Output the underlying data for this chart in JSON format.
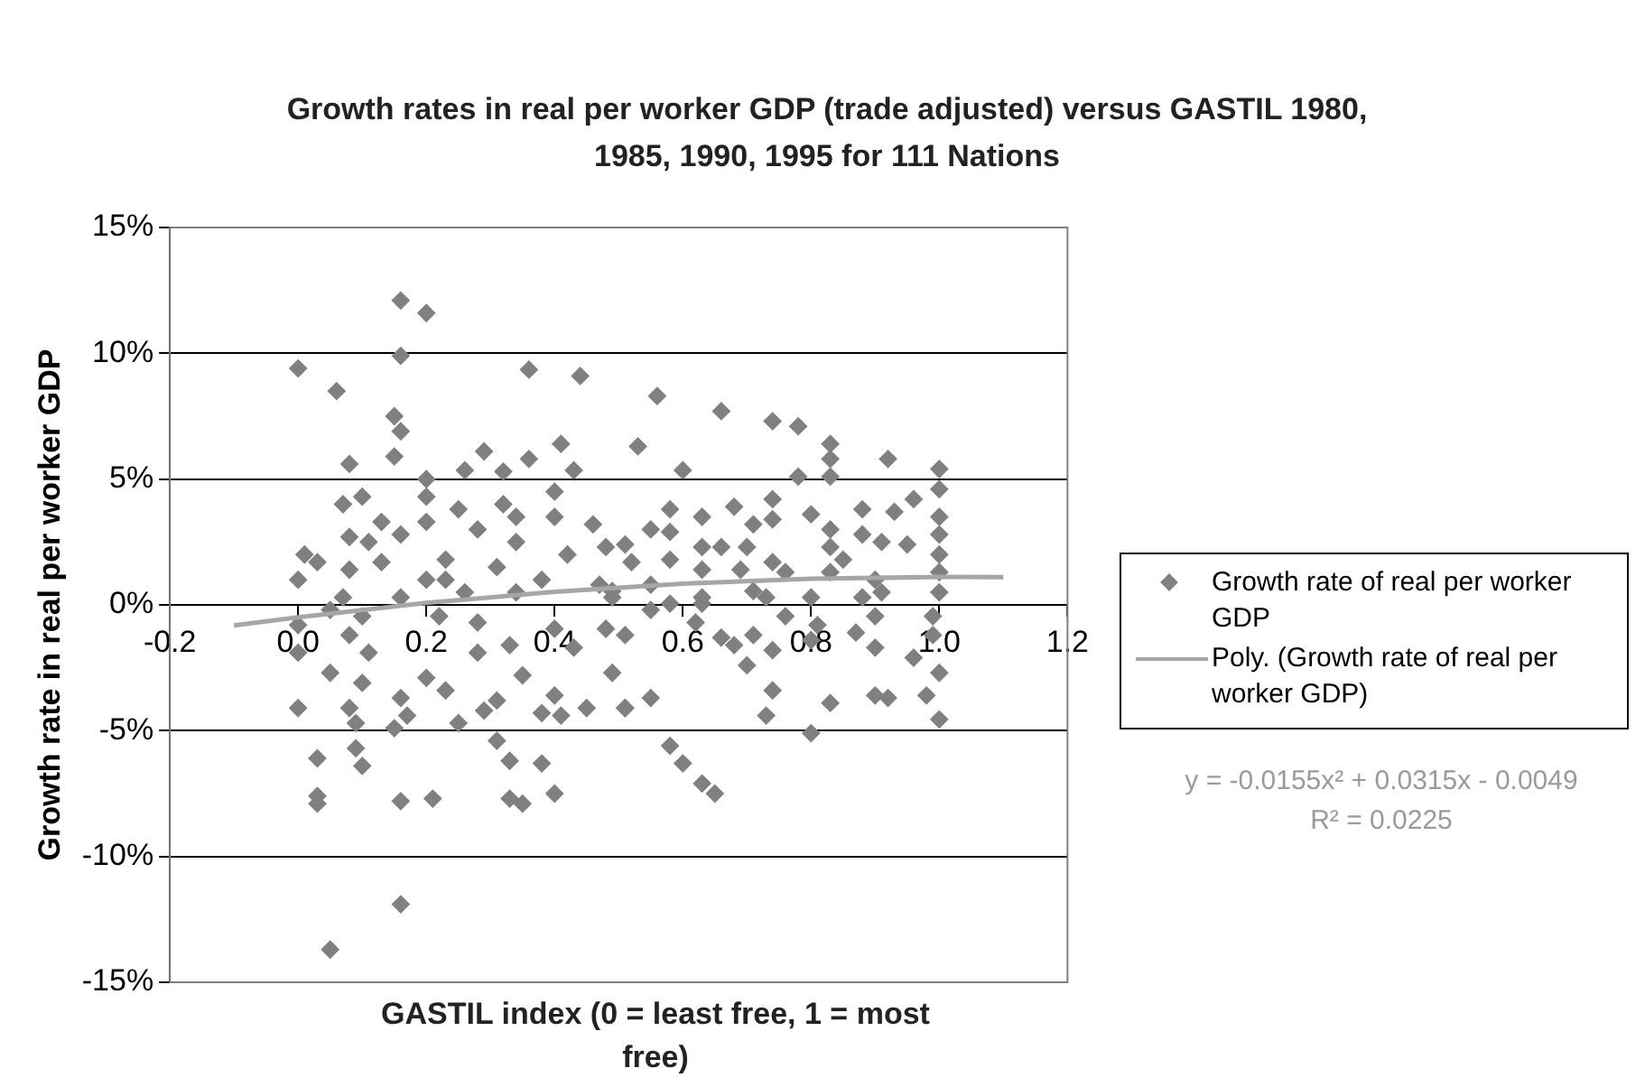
{
  "chart_data": {
    "type": "scatter",
    "title": "Growth rates in real per worker GDP (trade adjusted) versus GASTIL 1980, 1985, 1990, 1995 for 111 Nations",
    "xlabel": "GASTIL index (0 = least free, 1 = most free)",
    "ylabel": "Growth rate in real per worker GDP",
    "xlim": [
      -0.2,
      1.2
    ],
    "xticks": [
      -0.2,
      {
        "value": 0,
        "label": "0.0"
      },
      0.2,
      0.4,
      0.6,
      0.8,
      {
        "value": 1,
        "label": "1.0"
      },
      1.2
    ],
    "ylim": [
      -15,
      15
    ],
    "yticks": [
      {
        "value": -15,
        "label": "-15%"
      },
      {
        "value": -10,
        "label": "-10%"
      },
      {
        "value": -5,
        "label": "-5%"
      },
      {
        "value": 0,
        "label": "0%"
      },
      {
        "value": 5,
        "label": "5%"
      },
      {
        "value": 10,
        "label": "10%"
      },
      {
        "value": 15,
        "label": "15%"
      }
    ],
    "grid": "y",
    "legend": "right",
    "line_style": "solid",
    "annotations": [
      "y = -0.0155x² + 0.0315x - 0.0049",
      "R² = 0.0225"
    ],
    "series": [
      {
        "name": "Growth rate of real per worker GDP",
        "marker": "diamond",
        "color": "#808080",
        "x": [
          0.0,
          0.06,
          0.16,
          0.2,
          0.16,
          0.36,
          0.44,
          0.15,
          0.16,
          0.08,
          0.15,
          0.41,
          0.43,
          0.29,
          0.26,
          0.36,
          0.32,
          0.2,
          0.07,
          0.1,
          0.08,
          0.11,
          0.13,
          0.16,
          0.2,
          0.2,
          0.25,
          0.28,
          0.32,
          0.34,
          0.34,
          0.4,
          0.4,
          0.46,
          0.48,
          0.0,
          0.01,
          0.03,
          0.08,
          0.13,
          0.2,
          0.23,
          0.31,
          0.38,
          0.42,
          0.26,
          0.34,
          0.47,
          0.07,
          0.16,
          0.49,
          0.23,
          0.0,
          0.0,
          0.05,
          0.1,
          0.0,
          0.08,
          0.09,
          0.09,
          0.1,
          0.03,
          0.03,
          0.03,
          0.16,
          0.21,
          0.16,
          0.05,
          0.16,
          0.15,
          0.17,
          0.08,
          0.11,
          0.1,
          0.2,
          0.23,
          0.25,
          0.28,
          0.29,
          0.31,
          0.31,
          0.33,
          0.33,
          0.35,
          0.38,
          0.4,
          0.35,
          0.38,
          0.41,
          0.4,
          0.45,
          0.33,
          0.4,
          0.43,
          0.48,
          0.49,
          0.51,
          0.05,
          0.22,
          0.28,
          0.56,
          0.66,
          0.74,
          0.78,
          0.53,
          0.6,
          0.83,
          0.83,
          0.83,
          0.78,
          0.92,
          1.0,
          1.0,
          0.96,
          0.88,
          0.93,
          0.74,
          0.74,
          0.68,
          0.63,
          0.58,
          0.55,
          0.51,
          0.58,
          0.63,
          0.66,
          0.71,
          0.7,
          0.8,
          0.83,
          0.83,
          0.85,
          0.88,
          0.91,
          0.95,
          1.0,
          1.0,
          1.0,
          1.0,
          1.0,
          0.52,
          0.58,
          0.63,
          0.69,
          0.74,
          0.76,
          0.83,
          0.9,
          0.91,
          0.88,
          0.49,
          0.55,
          0.63,
          0.71,
          0.8,
          0.73,
          0.51,
          0.55,
          0.62,
          0.51,
          0.55,
          0.58,
          0.6,
          0.63,
          0.65,
          0.66,
          0.68,
          0.7,
          0.71,
          0.74,
          0.74,
          0.73,
          0.76,
          0.8,
          0.81,
          0.8,
          0.83,
          0.87,
          0.9,
          0.9,
          0.92,
          0.9,
          0.96,
          0.98,
          1.0,
          1.0,
          0.99,
          0.99,
          0.58,
          0.63
        ],
        "values": [
          9.4,
          8.5,
          12.1,
          11.6,
          9.9,
          9.35,
          9.1,
          7.5,
          6.9,
          5.6,
          5.9,
          6.4,
          5.35,
          6.1,
          5.35,
          5.8,
          5.3,
          5.0,
          4.0,
          4.3,
          2.7,
          2.5,
          3.3,
          2.8,
          4.3,
          3.3,
          3.8,
          3.0,
          4.0,
          3.5,
          2.5,
          4.5,
          3.5,
          3.2,
          2.3,
          1.0,
          2.0,
          1.7,
          1.4,
          1.7,
          1.0,
          1.8,
          1.5,
          1.0,
          2.0,
          0.5,
          0.5,
          0.8,
          0.3,
          0.3,
          0.3,
          1.0,
          -0.8,
          -1.9,
          -2.7,
          -3.1,
          -4.1,
          -4.1,
          -4.7,
          -5.7,
          -6.4,
          -6.1,
          -7.6,
          -7.9,
          -7.8,
          -7.7,
          -11.9,
          -13.7,
          -3.7,
          -4.9,
          -4.4,
          -1.2,
          -1.9,
          -0.45,
          -2.9,
          -3.4,
          -4.7,
          -1.9,
          -4.2,
          -3.8,
          -5.4,
          -6.2,
          -7.7,
          -7.9,
          -6.3,
          -7.5,
          -2.8,
          -4.3,
          -4.4,
          -3.6,
          -4.1,
          -1.6,
          -0.95,
          -1.7,
          -0.95,
          -2.7,
          -4.1,
          -0.2,
          -0.45,
          -0.7,
          8.3,
          7.7,
          7.3,
          7.1,
          6.3,
          5.35,
          6.4,
          5.8,
          5.1,
          5.1,
          5.8,
          5.4,
          4.6,
          4.2,
          3.8,
          3.7,
          4.2,
          3.4,
          3.9,
          3.5,
          3.8,
          3.0,
          2.4,
          2.9,
          2.3,
          2.3,
          3.2,
          2.3,
          3.6,
          3.0,
          2.3,
          1.8,
          2.8,
          2.5,
          2.4,
          3.5,
          2.8,
          2.0,
          1.3,
          0.5,
          1.7,
          1.8,
          1.4,
          1.4,
          1.7,
          1.3,
          1.3,
          1.0,
          0.5,
          0.3,
          0.55,
          0.8,
          0.3,
          0.55,
          0.3,
          0.3,
          -1.2,
          -0.2,
          -0.7,
          -4.1,
          -3.7,
          -5.6,
          -6.3,
          -7.1,
          -7.5,
          -1.3,
          -1.6,
          -2.4,
          -1.2,
          -1.8,
          -3.4,
          -4.4,
          -0.45,
          -5.1,
          -0.8,
          -1.4,
          -3.9,
          -1.1,
          -1.7,
          -3.6,
          -3.7,
          -0.45,
          -2.1,
          -3.6,
          -4.55,
          -2.7,
          -1.2,
          -0.45,
          0.05,
          0.05
        ]
      },
      {
        "name": "Poly. (Growth rate of real per worker GDP)",
        "type": "line",
        "marker": "none",
        "color": "#a6a6a6",
        "x": [
          -0.1,
          0.0,
          0.2,
          0.4,
          0.6,
          0.8,
          1.0,
          1.1
        ],
        "values": [
          -0.82,
          -0.49,
          0.08,
          0.52,
          0.84,
          1.04,
          1.11,
          1.1
        ]
      }
    ]
  }
}
